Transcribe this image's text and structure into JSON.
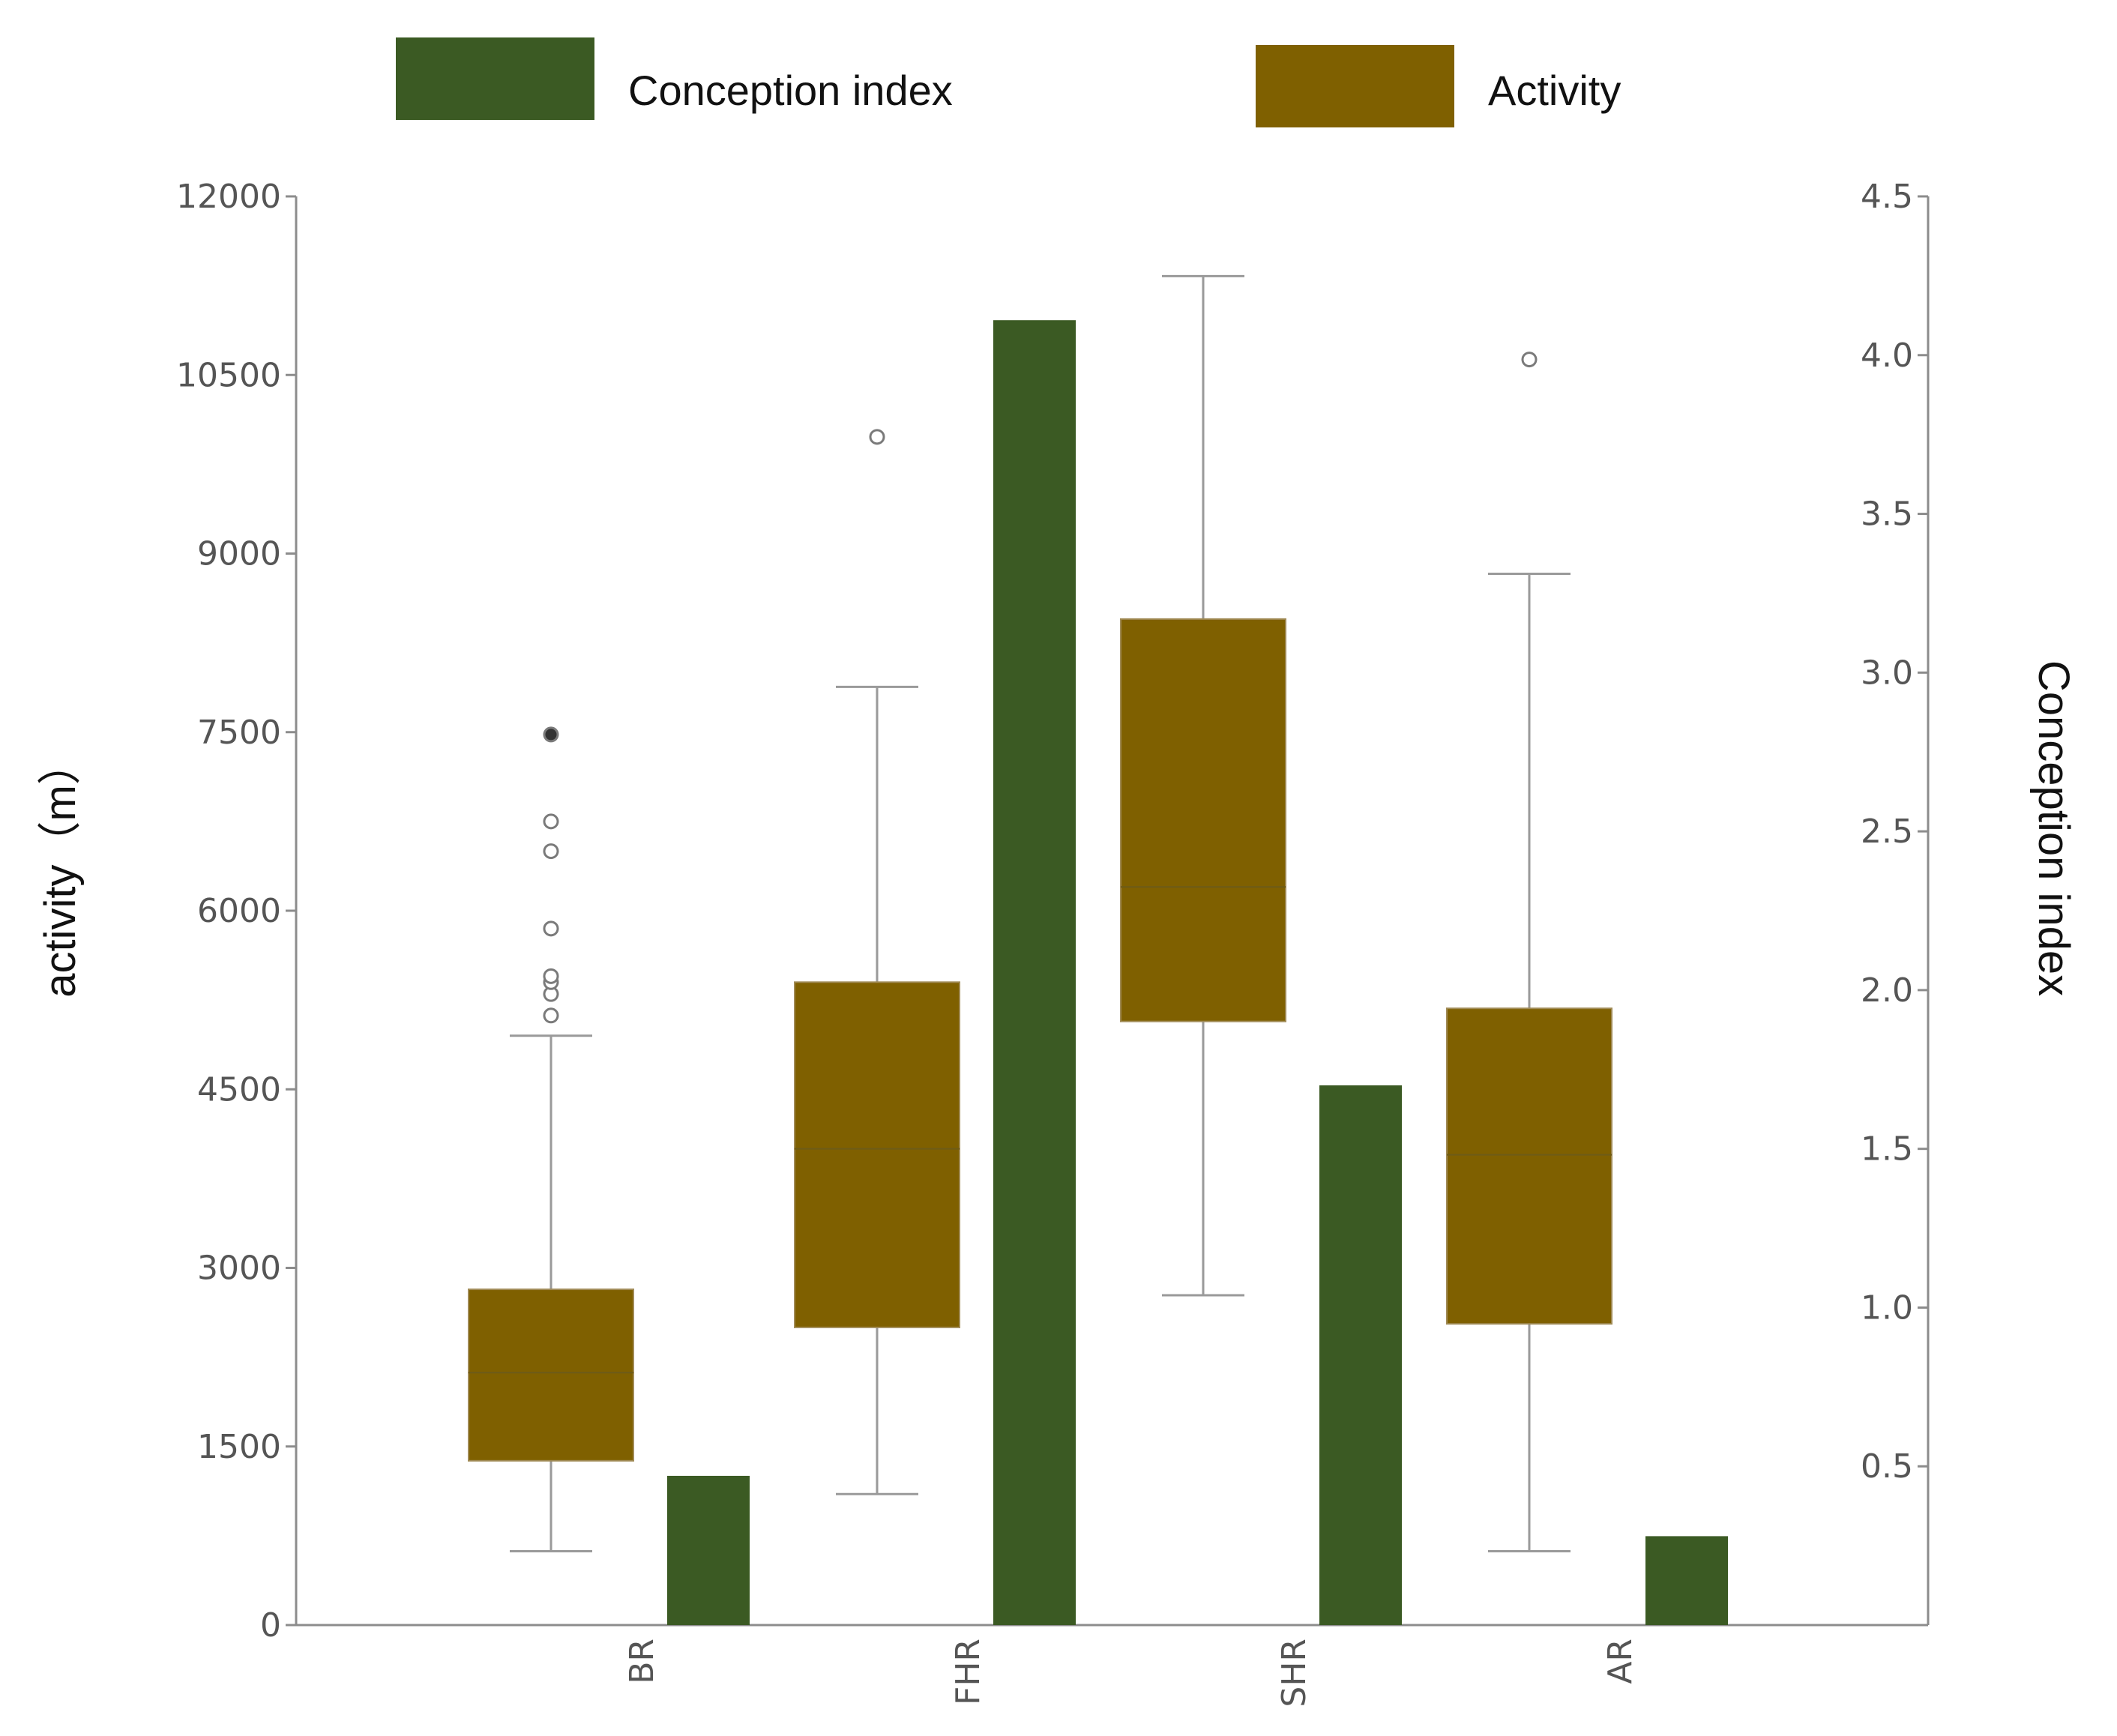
{
  "chart_data": {
    "type": "box+bar",
    "categories": [
      "BR",
      "FHR",
      "SHR",
      "AR"
    ],
    "legend": [
      {
        "name": "Conception index",
        "color": "#3b5a23"
      },
      {
        "name": "Activity",
        "color": "#7f6000"
      }
    ],
    "left_axis": {
      "label": "activity（m）",
      "ylim": [
        0,
        12000
      ],
      "ticks": [
        "0",
        "1500",
        "3000",
        "4500",
        "6000",
        "7500",
        "9000",
        "10500",
        "12000"
      ]
    },
    "right_axis": {
      "label": "Conception index",
      "ylim": [
        0,
        4.5
      ],
      "ticks": [
        "0.5",
        "1.0",
        "1.5",
        "2.0",
        "2.5",
        "3.0",
        "3.5",
        "4.0",
        "4.5"
      ]
    },
    "activity_boxes": [
      {
        "category": "BR",
        "whisker_low": 620,
        "q1": 1380,
        "median": 2120,
        "q3": 2820,
        "whisker_high": 4950,
        "outliers": [
          5120,
          5300,
          5400,
          5450,
          5850,
          6500,
          6750,
          7480
        ]
      },
      {
        "category": "FHR",
        "whisker_low": 1100,
        "q1": 2500,
        "median": 4000,
        "q3": 5400,
        "whisker_high": 7880,
        "outliers": [
          9980
        ]
      },
      {
        "category": "SHR",
        "whisker_low": 2770,
        "q1": 5070,
        "median": 6200,
        "q3": 8450,
        "whisker_high": 11330,
        "outliers": []
      },
      {
        "category": "AR",
        "whisker_low": 620,
        "q1": 2530,
        "median": 3950,
        "q3": 5180,
        "whisker_high": 8830,
        "outliers": [
          10630
        ]
      }
    ],
    "conception_index": {
      "name": "Conception index",
      "values": [
        0.47,
        4.11,
        1.7,
        0.28
      ]
    },
    "grid": false,
    "legend_position": "top"
  }
}
